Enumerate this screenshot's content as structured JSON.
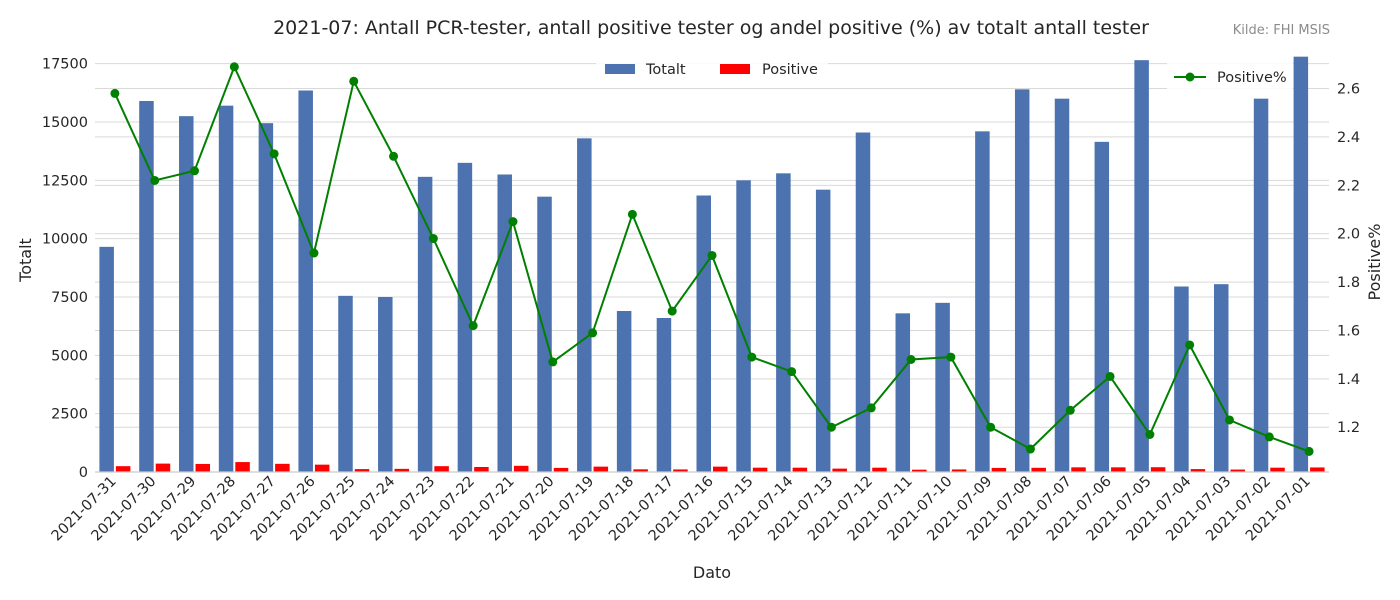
{
  "chart_data": {
    "type": "bar",
    "title": "2021-07: Antall PCR-tester, antall positive tester og andel positive (%) av totalt antall tester",
    "source": "Kilde: FHI MSIS",
    "xlabel": "Dato",
    "ylabel": "Totalt",
    "y2label": "Positive%",
    "ylim": [
      0,
      18300
    ],
    "y2lim": [
      1.015,
      2.78
    ],
    "yticks": [
      "0",
      "2500",
      "5000",
      "7500",
      "10000",
      "12500",
      "15000",
      "17500"
    ],
    "y2ticks": [
      "1.2",
      "1.4",
      "1.6",
      "1.8",
      "2.0",
      "2.2",
      "2.4",
      "2.6"
    ],
    "grid": true,
    "legend_bars_position": "top-center",
    "legend_line_position": "top-right",
    "categories": [
      "2021-07-31",
      "2021-07-30",
      "2021-07-29",
      "2021-07-28",
      "2021-07-27",
      "2021-07-26",
      "2021-07-25",
      "2021-07-24",
      "2021-07-23",
      "2021-07-22",
      "2021-07-21",
      "2021-07-20",
      "2021-07-19",
      "2021-07-18",
      "2021-07-17",
      "2021-07-16",
      "2021-07-15",
      "2021-07-14",
      "2021-07-13",
      "2021-07-12",
      "2021-07-11",
      "2021-07-10",
      "2021-07-09",
      "2021-07-08",
      "2021-07-07",
      "2021-07-06",
      "2021-07-05",
      "2021-07-04",
      "2021-07-03",
      "2021-07-02",
      "2021-07-01"
    ],
    "series": [
      {
        "name": "Totalt",
        "color": "#4c72b0",
        "values": [
          9650,
          15900,
          15250,
          15700,
          14950,
          16350,
          7550,
          7500,
          12650,
          13250,
          12750,
          11800,
          14300,
          6900,
          6600,
          11850,
          12500,
          12800,
          12100,
          14550,
          6800,
          7250,
          14600,
          16400,
          16000,
          14150,
          17650,
          7950,
          8050,
          16000,
          17800
        ]
      },
      {
        "name": "Positive",
        "color": "#ff0000",
        "values": [
          250,
          360,
          345,
          425,
          350,
          315,
          125,
          135,
          250,
          215,
          265,
          175,
          230,
          115,
          110,
          230,
          185,
          185,
          145,
          185,
          100,
          110,
          175,
          180,
          200,
          200,
          205,
          125,
          105,
          185,
          195
        ]
      },
      {
        "name": "Positive%",
        "color": "#008000",
        "axis": "right",
        "type": "line",
        "values": [
          2.58,
          2.22,
          2.26,
          2.69,
          2.33,
          1.92,
          2.63,
          2.32,
          1.98,
          1.62,
          2.05,
          1.47,
          1.59,
          2.08,
          1.68,
          1.91,
          1.49,
          1.43,
          1.2,
          1.28,
          1.48,
          1.49,
          1.2,
          1.11,
          1.27,
          1.41,
          1.17,
          1.54,
          1.23,
          1.16,
          1.1
        ]
      }
    ]
  }
}
